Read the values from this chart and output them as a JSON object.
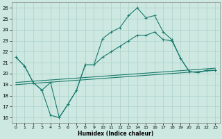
{
  "xlabel": "Humidex (Indice chaleur)",
  "background_color": "#cce8e0",
  "grid_color": "#b0d4cc",
  "line_color": "#1a7a6e",
  "xlim": [
    -0.5,
    23.5
  ],
  "ylim": [
    15.5,
    26.5
  ],
  "xticks": [
    0,
    1,
    2,
    3,
    4,
    5,
    6,
    7,
    8,
    9,
    10,
    11,
    12,
    13,
    14,
    15,
    16,
    17,
    18,
    19,
    20,
    21,
    22,
    23
  ],
  "yticks": [
    16,
    17,
    18,
    19,
    20,
    21,
    22,
    23,
    24,
    25,
    26
  ],
  "series": [
    {
      "x": [
        0,
        1,
        2,
        3,
        4,
        5,
        6,
        7,
        8,
        9,
        10,
        11,
        12,
        13,
        14,
        15,
        16,
        17,
        18,
        19,
        20,
        21,
        22,
        23
      ],
      "y": [
        21.5,
        20.7,
        19.2,
        18.5,
        19.2,
        16.0,
        17.2,
        18.5,
        20.8,
        20.8,
        23.2,
        23.8,
        24.2,
        25.3,
        26.0,
        25.1,
        25.3,
        23.8,
        23.1,
        21.4,
        20.2,
        20.1,
        20.3,
        20.3
      ],
      "marker": true
    },
    {
      "x": [
        0,
        1,
        2,
        3,
        4,
        5,
        6,
        7,
        8,
        9,
        10,
        11,
        12,
        13,
        14,
        15,
        16,
        17,
        18,
        19,
        20,
        21,
        22,
        23
      ],
      "y": [
        21.5,
        20.7,
        19.2,
        18.5,
        16.2,
        16.0,
        17.2,
        18.5,
        20.8,
        20.8,
        21.5,
        22.0,
        22.5,
        23.0,
        23.5,
        23.5,
        23.8,
        23.1,
        23.0,
        21.4,
        20.2,
        20.1,
        20.3,
        20.3
      ],
      "marker": true
    },
    {
      "x": [
        0,
        23
      ],
      "y": [
        19.0,
        20.3
      ],
      "marker": false
    },
    {
      "x": [
        0,
        23
      ],
      "y": [
        19.2,
        20.5
      ],
      "marker": false
    }
  ]
}
